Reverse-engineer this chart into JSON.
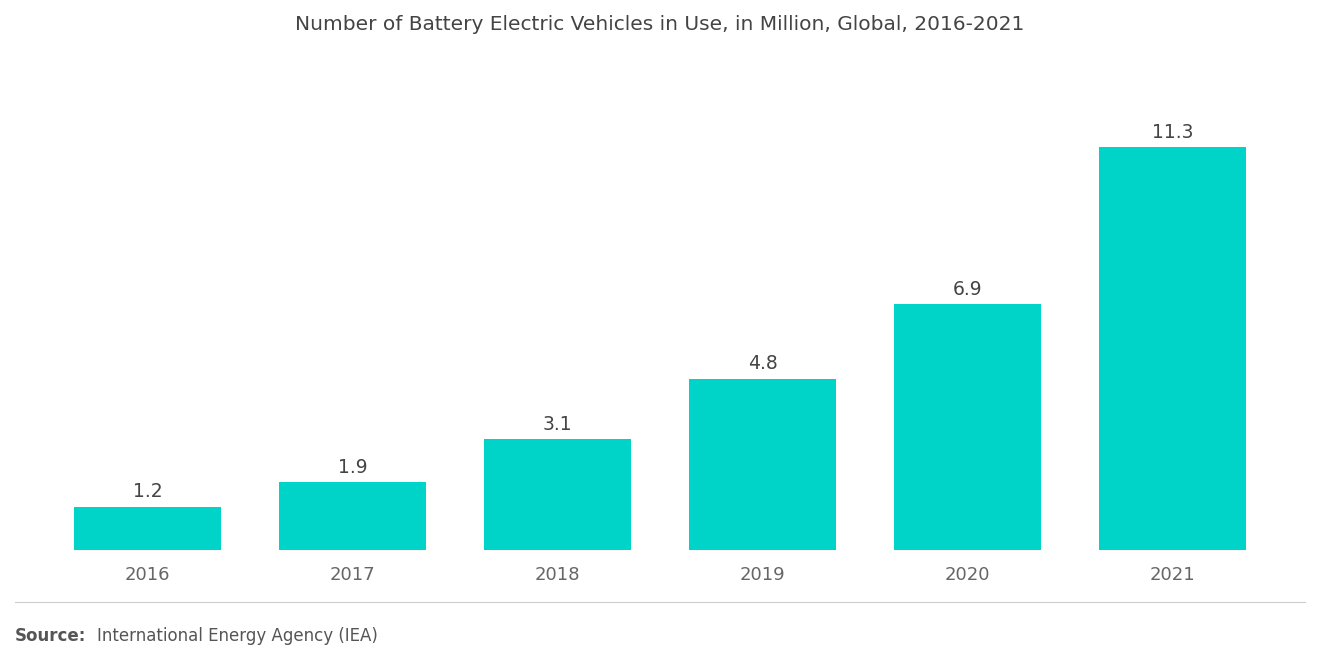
{
  "title": "Number of Battery Electric Vehicles in Use, in Million, Global, 2016-2021",
  "categories": [
    "2016",
    "2017",
    "2018",
    "2019",
    "2020",
    "2021"
  ],
  "values": [
    1.2,
    1.9,
    3.1,
    4.8,
    6.9,
    11.3
  ],
  "bar_color": "#00D4C8",
  "background_color": "#ffffff",
  "ylim": [
    0,
    13.5
  ],
  "title_fontsize": 14.5,
  "tick_fontsize": 13,
  "value_fontsize": 13.5,
  "source_bold": "Source:",
  "source_text": "International Energy Agency (IEA)",
  "source_fontsize": 12,
  "bar_width": 0.72,
  "value_color": "#444444",
  "tick_color": "#666666"
}
